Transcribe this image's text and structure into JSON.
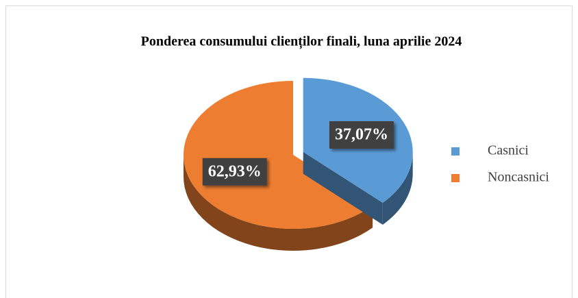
{
  "chart_data": {
    "type": "pie",
    "title": "Ponderea consumului clienților finali, luna aprilie 2024",
    "categories": [
      "Casnici",
      "Noncasnici"
    ],
    "values": [
      37.07,
      62.93
    ],
    "value_labels": [
      "37,07%",
      "62,93%"
    ],
    "colors": [
      "#5b9bd5",
      "#ed7d31"
    ],
    "legend": "right"
  }
}
